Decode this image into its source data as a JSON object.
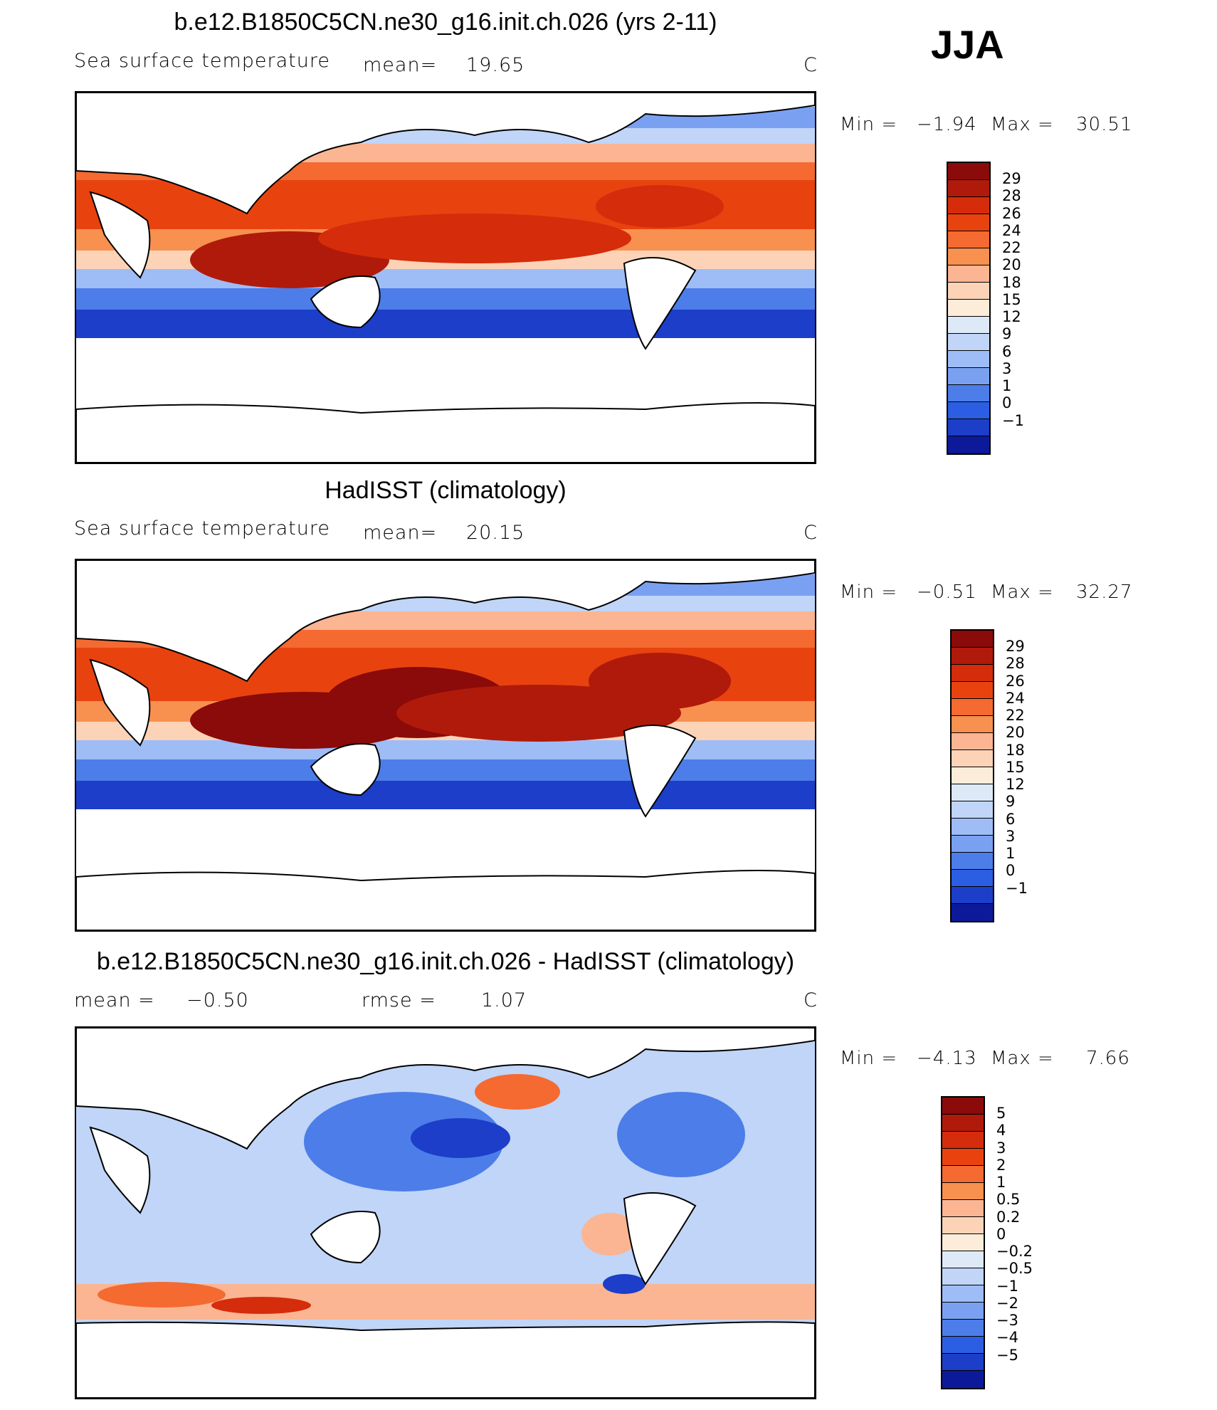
{
  "season": "JJA",
  "panels": [
    {
      "title": "b.e12.B1850C5CN.ne30_g16.init.ch.026 (yrs 2-11)",
      "variable": "Sea surface temperature",
      "stat_label": "mean=",
      "stat_value": "19.65",
      "units": "C",
      "min_label": "Min =",
      "min_value": "−1.94",
      "max_label": "Max =",
      "max_value": "30.51",
      "colorbar_levels": [
        "29",
        "28",
        "26",
        "24",
        "22",
        "20",
        "18",
        "15",
        "12",
        "9",
        "6",
        "3",
        "1",
        "0",
        "−1"
      ],
      "colorbar_colors": [
        "#8b0a0a",
        "#b01a0a",
        "#d52c0b",
        "#e8430f",
        "#f46a31",
        "#f8904f",
        "#fbb592",
        "#fcd3b7",
        "#fdecd9",
        "#dde9f7",
        "#c0d5f7",
        "#9ebdf6",
        "#7aa1f1",
        "#4c7de9",
        "#2b5ee2",
        "#1c3ec9",
        "#0c1a9a"
      ]
    },
    {
      "title": "HadISST (climatology)",
      "variable": "Sea surface temperature",
      "stat_label": "mean=",
      "stat_value": "20.15",
      "units": "C",
      "min_label": "Min =",
      "min_value": "−0.51",
      "max_label": "Max =",
      "max_value": "32.27",
      "colorbar_levels": [
        "29",
        "28",
        "26",
        "24",
        "22",
        "20",
        "18",
        "15",
        "12",
        "9",
        "6",
        "3",
        "1",
        "0",
        "−1"
      ],
      "colorbar_colors": [
        "#8b0a0a",
        "#b01a0a",
        "#d52c0b",
        "#e8430f",
        "#f46a31",
        "#f8904f",
        "#fbb592",
        "#fcd3b7",
        "#fdecd9",
        "#dde9f7",
        "#c0d5f7",
        "#9ebdf6",
        "#7aa1f1",
        "#4c7de9",
        "#2b5ee2",
        "#1c3ec9",
        "#0c1a9a"
      ]
    },
    {
      "title": "b.e12.B1850C5CN.ne30_g16.init.ch.026 - HadISST (climatology)",
      "variable": "",
      "stat_label": "mean =",
      "stat_value": "−0.50",
      "stat2_label": "rmse =",
      "stat2_value": "1.07",
      "units": "C",
      "min_label": "Min =",
      "min_value": "−4.13",
      "max_label": "Max =",
      "max_value": "7.66",
      "colorbar_levels": [
        "5",
        "4",
        "3",
        "2",
        "1",
        "0.5",
        "0.2",
        "0",
        "−0.2",
        "−0.5",
        "−1",
        "−2",
        "−3",
        "−4",
        "−5"
      ],
      "colorbar_colors": [
        "#8b0a0a",
        "#b01a0a",
        "#d52c0b",
        "#e8430f",
        "#f46a31",
        "#f8904f",
        "#fbb592",
        "#fcd3b7",
        "#fdecd9",
        "#dde9f7",
        "#c0d5f7",
        "#9ebdf6",
        "#7aa1f1",
        "#4c7de9",
        "#2b5ee2",
        "#1c3ec9",
        "#0c1a9a"
      ]
    }
  ]
}
